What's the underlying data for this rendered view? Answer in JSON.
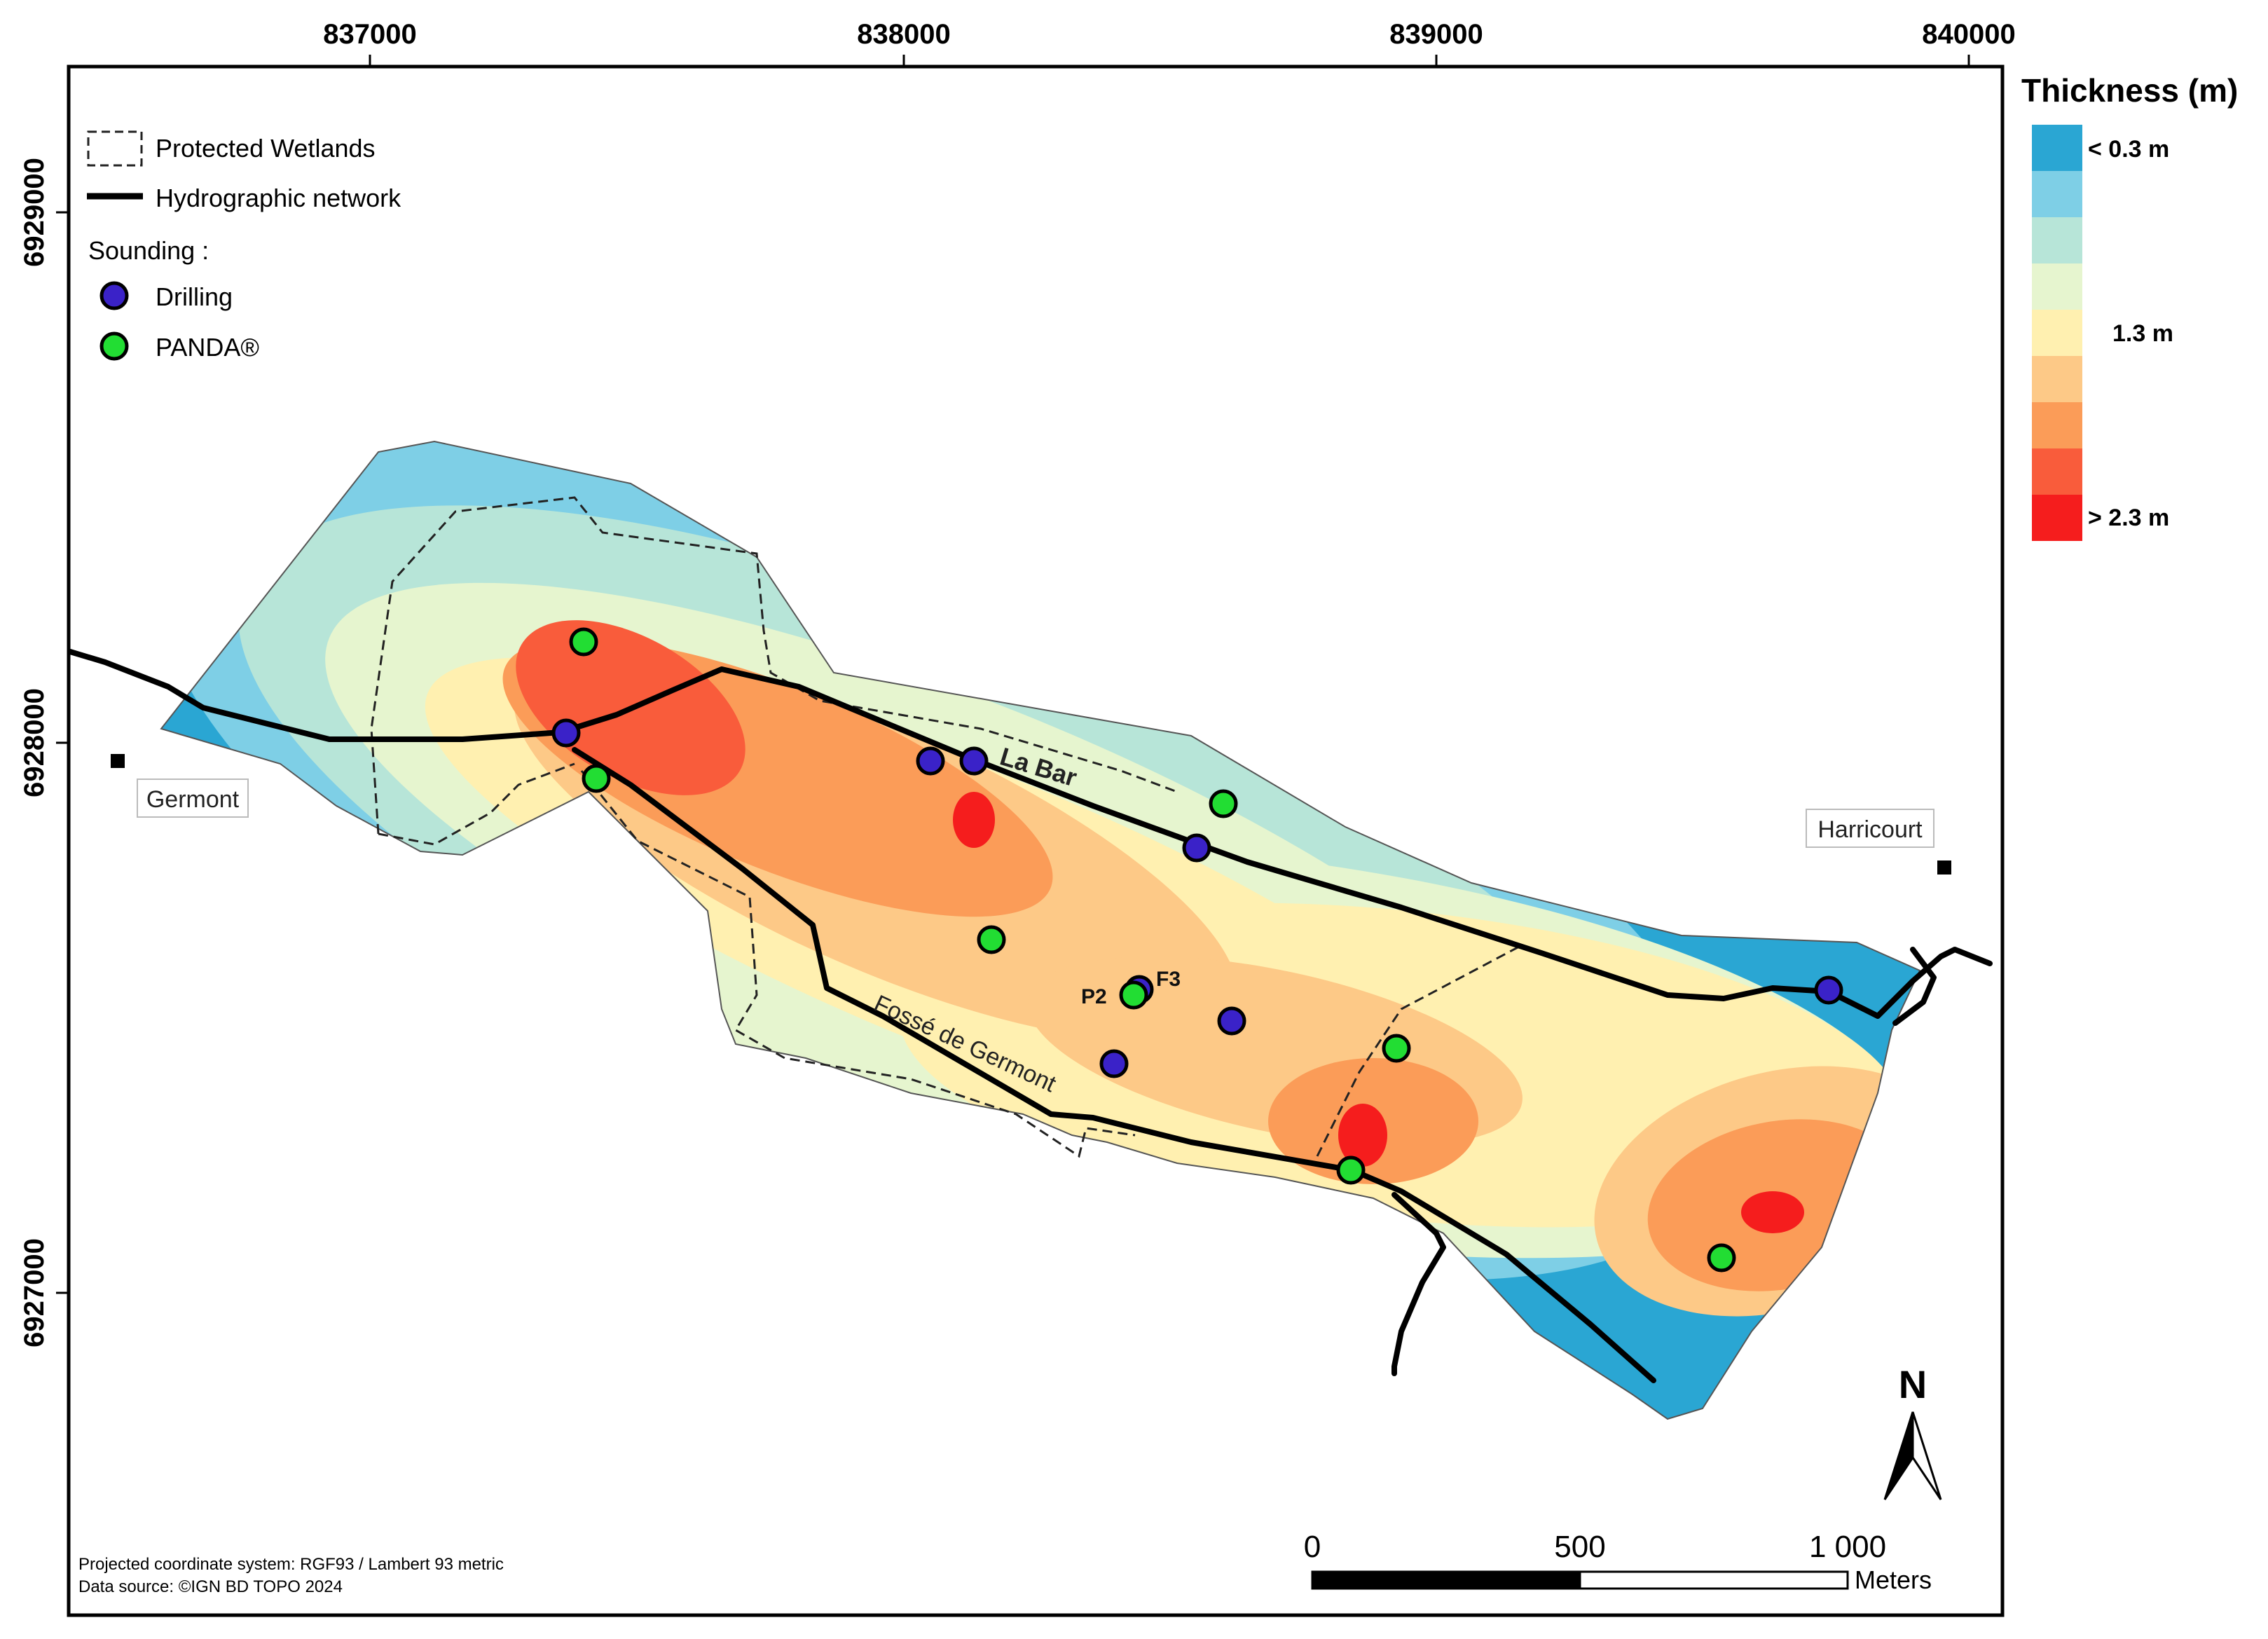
{
  "axes": {
    "x_ticks": [
      "837000",
      "838000",
      "839000",
      "840000"
    ],
    "y_ticks": [
      "6929000",
      "6928000",
      "6927000"
    ]
  },
  "legend": {
    "items": [
      {
        "label": "Protected Wetlands",
        "symbol": "dashed-box"
      },
      {
        "label": "Hydrographic network",
        "symbol": "thick-line"
      }
    ],
    "sounding_title": "Sounding :",
    "soundings": [
      {
        "label": "Drilling",
        "color": "#3a22c8"
      },
      {
        "label": "PANDA®",
        "color": "#22dd33"
      }
    ]
  },
  "thickness_legend": {
    "title": "Thickness (m)",
    "classes": [
      "#2aa6d3",
      "#7ecfe6",
      "#b7e5d8",
      "#e6f5cf",
      "#fff0b0",
      "#fdc987",
      "#fb9c58",
      "#f95c3b",
      "#f51d1d"
    ],
    "labels": {
      "low": "< 0.3 m",
      "mid": "1.3 m",
      "high": "> 2.3 m"
    }
  },
  "places": [
    {
      "name": "Germont"
    },
    {
      "name": "Harricourt"
    }
  ],
  "streams": {
    "main": "La Bar",
    "secondary": "Fossé de Germont"
  },
  "point_labels": {
    "p2": "P2",
    "f3": "F3"
  },
  "scalebar": {
    "ticks": [
      "0",
      "500",
      "1 000"
    ],
    "unit": "Meters"
  },
  "north_label": "N",
  "footer": {
    "crs": "Projected coordinate system: RGF93 / Lambert 93 metric",
    "source": "Data source: ©IGN BD TOPO 2024"
  }
}
